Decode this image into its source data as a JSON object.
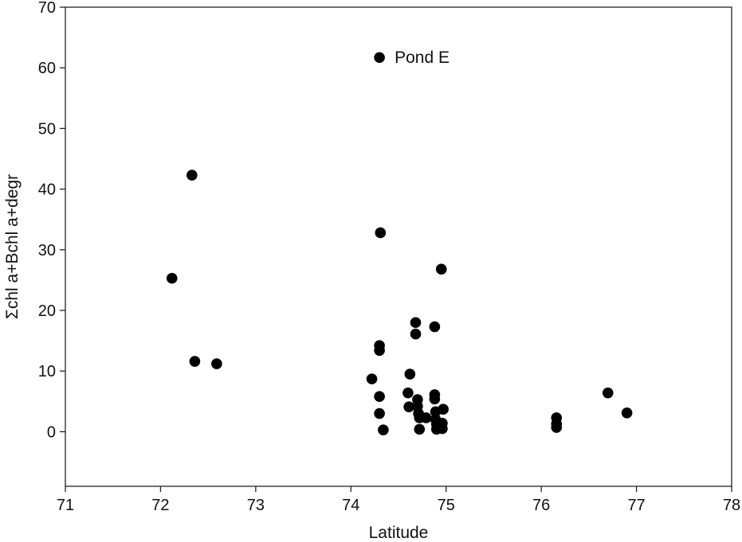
{
  "chart_data": {
    "type": "scatter",
    "title": "",
    "xlabel": "Latitude",
    "ylabel": "Σchl a+Bchl a+degr",
    "xlim": [
      71,
      78
    ],
    "ylim": [
      -9,
      70
    ],
    "xticks": [
      71,
      72,
      73,
      74,
      75,
      76,
      77,
      78
    ],
    "yticks": [
      0,
      10,
      20,
      30,
      40,
      50,
      60,
      70
    ],
    "grid": false,
    "legend": "none",
    "marker_color": "#000000",
    "points": [
      {
        "x": 72.12,
        "y": 25.3
      },
      {
        "x": 72.33,
        "y": 42.3
      },
      {
        "x": 72.36,
        "y": 11.6
      },
      {
        "x": 72.59,
        "y": 11.2
      },
      {
        "x": 74.22,
        "y": 8.7
      },
      {
        "x": 74.3,
        "y": 61.7
      },
      {
        "x": 74.31,
        "y": 32.8
      },
      {
        "x": 74.3,
        "y": 14.2
      },
      {
        "x": 74.3,
        "y": 13.4
      },
      {
        "x": 74.3,
        "y": 5.8
      },
      {
        "x": 74.3,
        "y": 3.0
      },
      {
        "x": 74.34,
        "y": 0.3
      },
      {
        "x": 74.6,
        "y": 6.4
      },
      {
        "x": 74.61,
        "y": 4.1
      },
      {
        "x": 74.62,
        "y": 9.5
      },
      {
        "x": 74.68,
        "y": 18.0
      },
      {
        "x": 74.68,
        "y": 16.1
      },
      {
        "x": 74.7,
        "y": 5.3
      },
      {
        "x": 74.7,
        "y": 4.2
      },
      {
        "x": 74.71,
        "y": 3.0
      },
      {
        "x": 74.72,
        "y": 2.3
      },
      {
        "x": 74.72,
        "y": 0.4
      },
      {
        "x": 74.79,
        "y": 2.3
      },
      {
        "x": 74.88,
        "y": 17.3
      },
      {
        "x": 74.88,
        "y": 6.1
      },
      {
        "x": 74.88,
        "y": 5.4
      },
      {
        "x": 74.89,
        "y": 3.3
      },
      {
        "x": 74.89,
        "y": 2.0
      },
      {
        "x": 74.9,
        "y": 1.2
      },
      {
        "x": 74.9,
        "y": 0.4
      },
      {
        "x": 74.95,
        "y": 26.8
      },
      {
        "x": 74.96,
        "y": 1.4
      },
      {
        "x": 74.96,
        "y": 0.5
      },
      {
        "x": 74.97,
        "y": 3.7
      },
      {
        "x": 76.16,
        "y": 2.3
      },
      {
        "x": 76.16,
        "y": 1.3
      },
      {
        "x": 76.16,
        "y": 0.7
      },
      {
        "x": 76.7,
        "y": 6.4
      },
      {
        "x": 76.9,
        "y": 3.1
      }
    ],
    "annotations": [
      {
        "text": "Pond E",
        "x": 74.3,
        "y": 61.7
      }
    ]
  }
}
